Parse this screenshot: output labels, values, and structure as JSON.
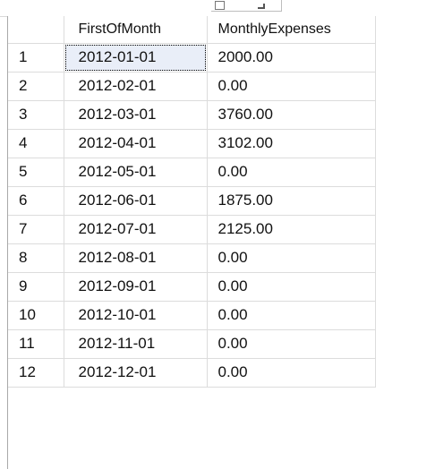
{
  "grid": {
    "headers": [
      "",
      "FirstOfMonth",
      "MonthlyExpenses"
    ],
    "rows": [
      {
        "row": "1",
        "first_of_month": "2012-01-01",
        "monthly_expenses": "2000.00"
      },
      {
        "row": "2",
        "first_of_month": "2012-02-01",
        "monthly_expenses": "0.00"
      },
      {
        "row": "3",
        "first_of_month": "2012-03-01",
        "monthly_expenses": "3760.00"
      },
      {
        "row": "4",
        "first_of_month": "2012-04-01",
        "monthly_expenses": "3102.00"
      },
      {
        "row": "5",
        "first_of_month": "2012-05-01",
        "monthly_expenses": "0.00"
      },
      {
        "row": "6",
        "first_of_month": "2012-06-01",
        "monthly_expenses": "1875.00"
      },
      {
        "row": "7",
        "first_of_month": "2012-07-01",
        "monthly_expenses": "2125.00"
      },
      {
        "row": "8",
        "first_of_month": "2012-08-01",
        "monthly_expenses": "0.00"
      },
      {
        "row": "9",
        "first_of_month": "2012-09-01",
        "monthly_expenses": "0.00"
      },
      {
        "row": "10",
        "first_of_month": "2012-10-01",
        "monthly_expenses": "0.00"
      },
      {
        "row": "11",
        "first_of_month": "2012-11-01",
        "monthly_expenses": "0.00"
      },
      {
        "row": "12",
        "first_of_month": "2012-12-01",
        "monthly_expenses": "0.00"
      }
    ]
  },
  "colors": {
    "grid_line": "#dcdcdc",
    "selection": "#e9eef8"
  }
}
